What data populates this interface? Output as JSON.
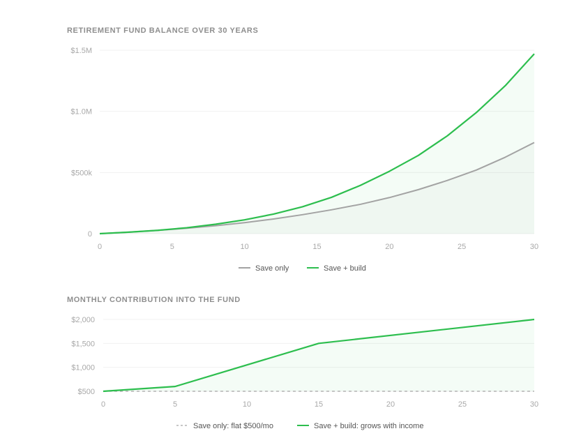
{
  "chart_data": [
    {
      "type": "area",
      "title": "RETIREMENT FUND BALANCE OVER 30 YEARS",
      "xlabel": "",
      "ylabel": "",
      "xlim": [
        0,
        30
      ],
      "ylim": [
        0,
        1500000
      ],
      "x_ticks": [
        0,
        5,
        10,
        15,
        20,
        25,
        30
      ],
      "x_tick_labels": [
        "0",
        "5",
        "10",
        "15",
        "20",
        "25",
        "30"
      ],
      "y_ticks": [
        0,
        500000,
        1000000,
        1500000
      ],
      "y_tick_labels": [
        "0",
        "$500k",
        "$1.0M",
        "$1.5M"
      ],
      "grid": "horizontal",
      "legend_position": "bottom-center",
      "x": [
        0,
        2,
        4,
        6,
        8,
        10,
        12,
        14,
        16,
        18,
        20,
        22,
        24,
        26,
        28,
        30
      ],
      "series": [
        {
          "name": "Save only",
          "color": "#a3a3a3",
          "values": [
            0,
            12000,
            27000,
            44000,
            65000,
            90000,
            120000,
            155000,
            195000,
            240000,
            295000,
            360000,
            435000,
            520000,
            625000,
            745000
          ]
        },
        {
          "name": "Save + build",
          "color": "#2dbe4e",
          "values": [
            0,
            12000,
            27000,
            48000,
            77000,
            113000,
            160000,
            220000,
            297000,
            395000,
            510000,
            640000,
            800000,
            990000,
            1210000,
            1470000
          ]
        }
      ]
    },
    {
      "type": "line",
      "title": "MONTHLY CONTRIBUTION INTO THE FUND",
      "xlabel": "",
      "ylabel": "",
      "xlim": [
        0,
        30
      ],
      "ylim": [
        500,
        2000
      ],
      "x_ticks": [
        0,
        5,
        10,
        15,
        20,
        25,
        30
      ],
      "x_tick_labels": [
        "0",
        "5",
        "10",
        "15",
        "20",
        "25",
        "30"
      ],
      "y_ticks": [
        500,
        1000,
        1500,
        2000
      ],
      "y_tick_labels": [
        "$500",
        "$1,000",
        "$1,500",
        "$2,000"
      ],
      "grid": "horizontal",
      "legend_position": "bottom-center",
      "series": [
        {
          "name": "Save only: flat $500/mo",
          "color": "#a3a3a3",
          "dashed": true,
          "x": [
            0,
            30
          ],
          "values": [
            500,
            500
          ]
        },
        {
          "name": "Save + build: grows with income",
          "color": "#2dbe4e",
          "dashed": false,
          "x": [
            0,
            5,
            15,
            30
          ],
          "values": [
            500,
            600,
            1500,
            2000
          ]
        }
      ]
    }
  ]
}
